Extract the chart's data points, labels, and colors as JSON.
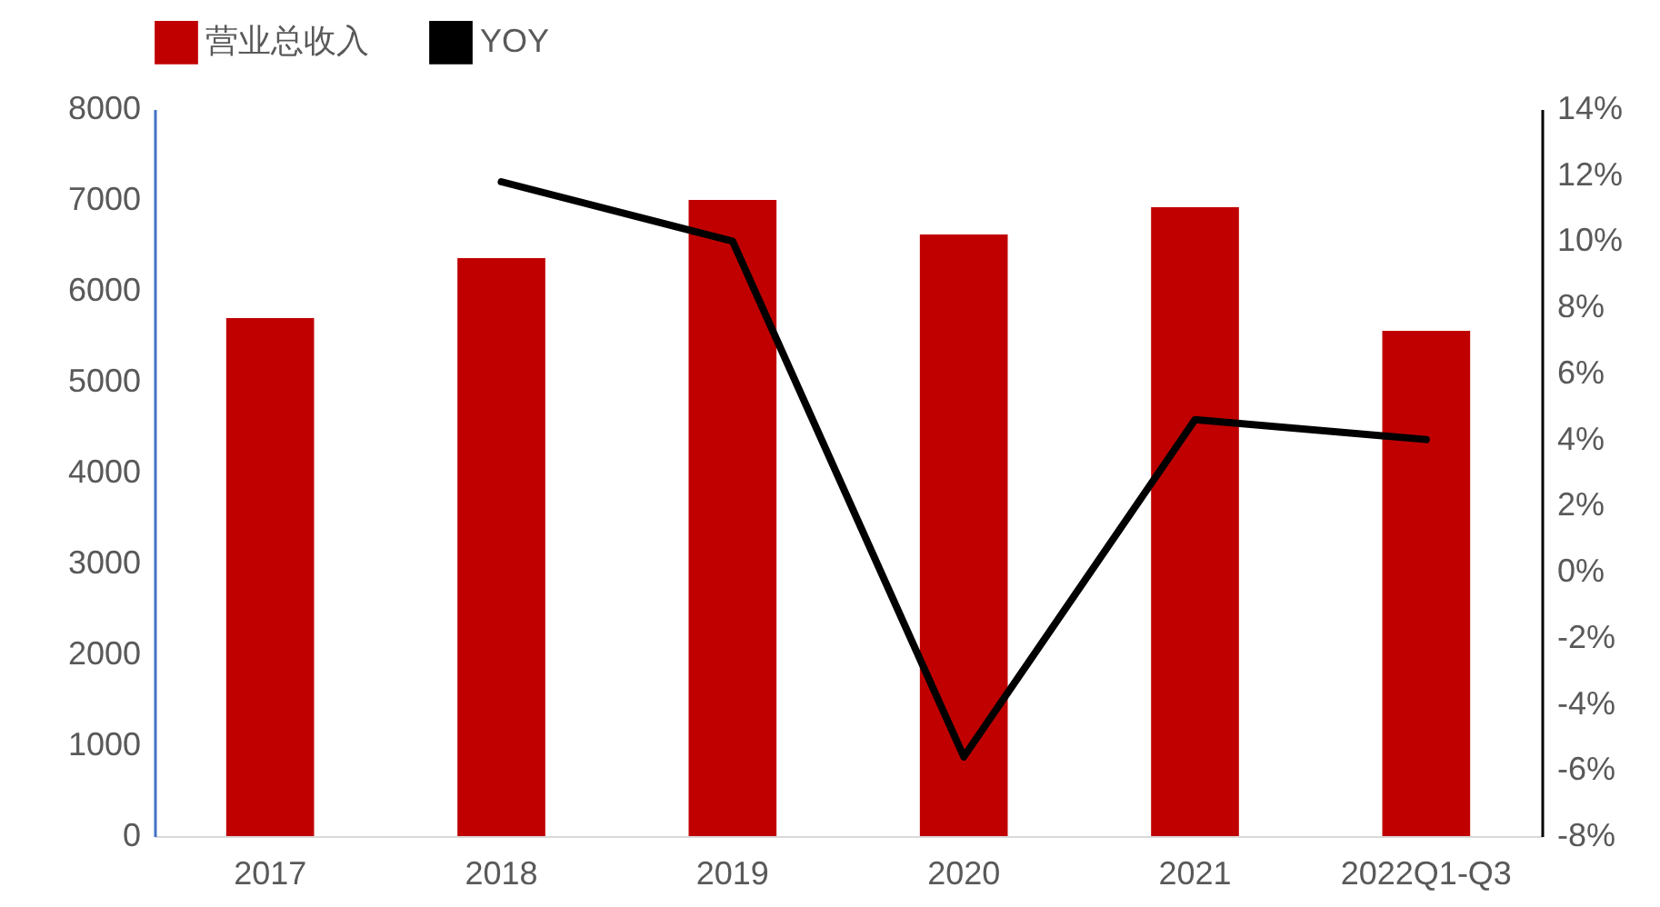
{
  "chart_data": {
    "type": "bar",
    "categories": [
      "2017",
      "2018",
      "2019",
      "2020",
      "2021",
      "2022Q1-Q3"
    ],
    "series": [
      {
        "name": "营业总收入",
        "color": "#c00000",
        "values": [
          5700,
          6360,
          7000,
          6620,
          6920,
          5560
        ]
      },
      {
        "name": "YOY",
        "type": "line",
        "axis": "y2",
        "color": "#000000",
        "values": [
          null,
          11.8,
          10.0,
          -5.6,
          4.6,
          4.0
        ]
      }
    ],
    "ylim": [
      0,
      8000
    ],
    "yticks": [
      0,
      1000,
      2000,
      3000,
      4000,
      5000,
      6000,
      7000,
      8000
    ],
    "y2lim": [
      -8,
      14
    ],
    "y2ticks": [
      {
        "value": -8,
        "label": "-8%"
      },
      {
        "value": -6,
        "label": "-6%"
      },
      {
        "value": -4,
        "label": "-4%"
      },
      {
        "value": -2,
        "label": "-2%"
      },
      {
        "value": 0,
        "label": "0%"
      },
      {
        "value": 2,
        "label": "2%"
      },
      {
        "value": 4,
        "label": "4%"
      },
      {
        "value": 6,
        "label": "6%"
      },
      {
        "value": 8,
        "label": "8%"
      },
      {
        "value": 10,
        "label": "10%"
      },
      {
        "value": 12,
        "label": "12%"
      },
      {
        "value": 14,
        "label": "14%"
      }
    ],
    "grid": false,
    "legend": "top",
    "marker": "none",
    "line_style": "solid"
  }
}
